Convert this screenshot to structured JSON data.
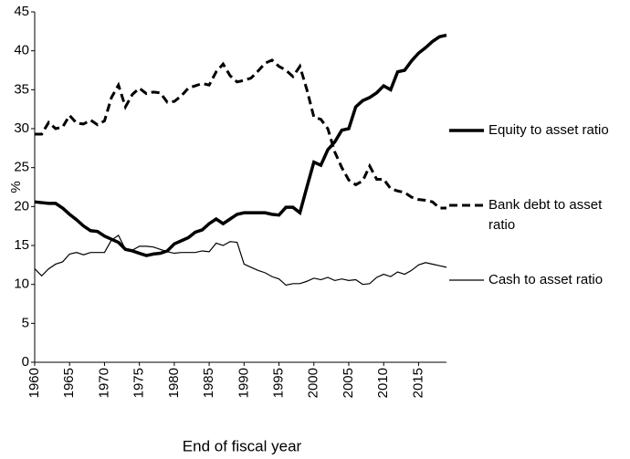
{
  "chart_data": {
    "type": "line",
    "x": [
      1960,
      1961,
      1962,
      1963,
      1964,
      1965,
      1966,
      1967,
      1968,
      1969,
      1970,
      1971,
      1972,
      1973,
      1974,
      1975,
      1976,
      1977,
      1978,
      1979,
      1980,
      1981,
      1982,
      1983,
      1984,
      1985,
      1986,
      1987,
      1988,
      1989,
      1990,
      1991,
      1992,
      1993,
      1994,
      1995,
      1996,
      1997,
      1998,
      1999,
      2000,
      2001,
      2002,
      2003,
      2004,
      2005,
      2006,
      2007,
      2008,
      2009,
      2010,
      2011,
      2012,
      2013,
      2014,
      2015,
      2016,
      2017,
      2018,
      2019
    ],
    "xlim": [
      1960,
      2019
    ],
    "xticks": [
      1960,
      1965,
      1970,
      1975,
      1980,
      1985,
      1990,
      1995,
      2000,
      2005,
      2010,
      2015
    ],
    "ylim": [
      0,
      45
    ],
    "yticks": [
      0,
      5,
      10,
      15,
      20,
      25,
      30,
      35,
      40,
      45
    ],
    "xlabel": "End of fiscal year",
    "ylabel": "%",
    "series": [
      {
        "name": "Equity to asset ratio",
        "color": "#000000",
        "style": "solid-thick",
        "values": [
          20.6,
          20.5,
          20.4,
          20.4,
          19.8,
          19.0,
          18.3,
          17.5,
          16.9,
          16.8,
          16.2,
          15.8,
          15.4,
          14.5,
          14.3,
          14.0,
          13.7,
          13.9,
          14.0,
          14.3,
          15.2,
          15.6,
          16.0,
          16.7,
          17.0,
          17.8,
          18.4,
          17.8,
          18.4,
          19.0,
          19.2,
          19.2,
          19.2,
          19.2,
          19.0,
          18.9,
          19.9,
          19.9,
          19.2,
          22.5,
          25.7,
          25.3,
          27.3,
          28.3,
          29.8,
          30.0,
          32.8,
          33.6,
          34.0,
          34.6,
          35.5,
          35.0,
          37.3,
          37.5,
          38.7,
          39.7,
          40.4,
          41.2,
          41.8,
          42.0
        ]
      },
      {
        "name": "Bank debt to asset ratio",
        "color": "#000000",
        "style": "dashed",
        "values": [
          29.3,
          29.3,
          30.8,
          30.0,
          30.2,
          31.7,
          30.7,
          30.6,
          31.1,
          30.5,
          31.0,
          34.0,
          35.6,
          32.8,
          34.4,
          35.2,
          34.5,
          34.7,
          34.6,
          33.4,
          33.5,
          34.2,
          35.2,
          35.5,
          35.8,
          35.6,
          37.3,
          38.3,
          36.8,
          36.0,
          36.2,
          36.5,
          37.4,
          38.4,
          38.8,
          38.0,
          37.5,
          36.7,
          38.0,
          35.0,
          31.5,
          31.2,
          30.0,
          27.0,
          25.0,
          23.4,
          22.8,
          23.3,
          25.2,
          23.5,
          23.5,
          22.3,
          22.0,
          21.8,
          21.2,
          20.9,
          20.8,
          20.6,
          19.8,
          19.8
        ]
      },
      {
        "name": "Cash to asset ratio",
        "color": "#000000",
        "style": "solid-thin",
        "values": [
          12.0,
          11.1,
          12.0,
          12.6,
          12.9,
          13.9,
          14.1,
          13.8,
          14.1,
          14.1,
          14.1,
          15.7,
          16.3,
          14.5,
          14.4,
          14.9,
          14.9,
          14.8,
          14.5,
          14.2,
          14.0,
          14.1,
          14.1,
          14.1,
          14.3,
          14.2,
          15.3,
          15.0,
          15.5,
          15.4,
          12.6,
          12.2,
          11.8,
          11.5,
          11.0,
          10.7,
          9.9,
          10.1,
          10.1,
          10.4,
          10.8,
          10.6,
          10.9,
          10.5,
          10.7,
          10.5,
          10.6,
          10.0,
          10.1,
          10.9,
          11.3,
          11.0,
          11.6,
          11.3,
          11.8,
          12.5,
          12.8,
          12.6,
          12.4,
          12.2
        ]
      }
    ]
  }
}
